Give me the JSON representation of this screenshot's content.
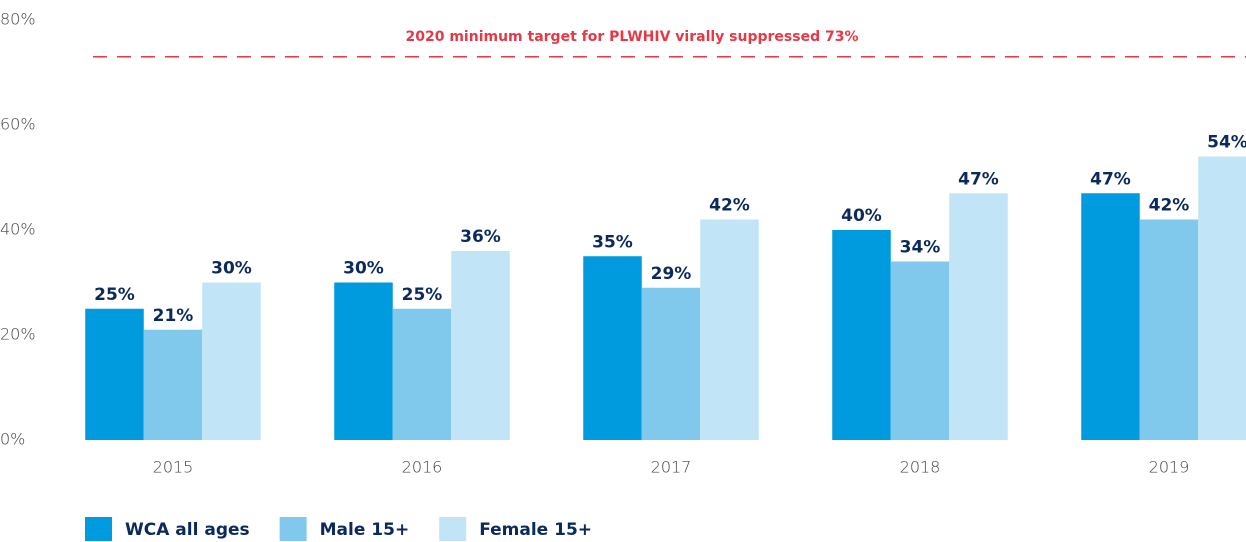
{
  "chart_data": {
    "type": "bar",
    "categories": [
      "2015",
      "2016",
      "2017",
      "2018",
      "2019"
    ],
    "series": [
      {
        "name": "WCA all ages",
        "color": "#009ade",
        "values": [
          25,
          30,
          35,
          40,
          47
        ],
        "value_labels": [
          "25%",
          "30%",
          "35%",
          "40%",
          "47%"
        ]
      },
      {
        "name": "Male 15+",
        "color": "#80c9ed",
        "values": [
          21,
          25,
          29,
          34,
          42
        ],
        "value_labels": [
          "21%",
          "25%",
          "29%",
          "34%",
          "42%"
        ]
      },
      {
        "name": "Female 15+",
        "color": "#c1e5f6",
        "values": [
          30,
          36,
          42,
          47,
          54
        ],
        "value_labels": [
          "30%",
          "36%",
          "42%",
          "47%",
          "54%"
        ]
      }
    ],
    "ylim": [
      0,
      80
    ],
    "yticks": [
      {
        "value": 0,
        "label": "0%"
      },
      {
        "value": 20,
        "label": "20%"
      },
      {
        "value": 40,
        "label": "40%"
      },
      {
        "value": 60,
        "label": "60%"
      },
      {
        "value": 80,
        "label": "80%"
      }
    ],
    "target": {
      "value": 73,
      "label": "2020 minimum target for PLWHIV virally suppressed 73%",
      "color": "#e63946"
    },
    "grid": false,
    "legend": "bottom-left"
  }
}
